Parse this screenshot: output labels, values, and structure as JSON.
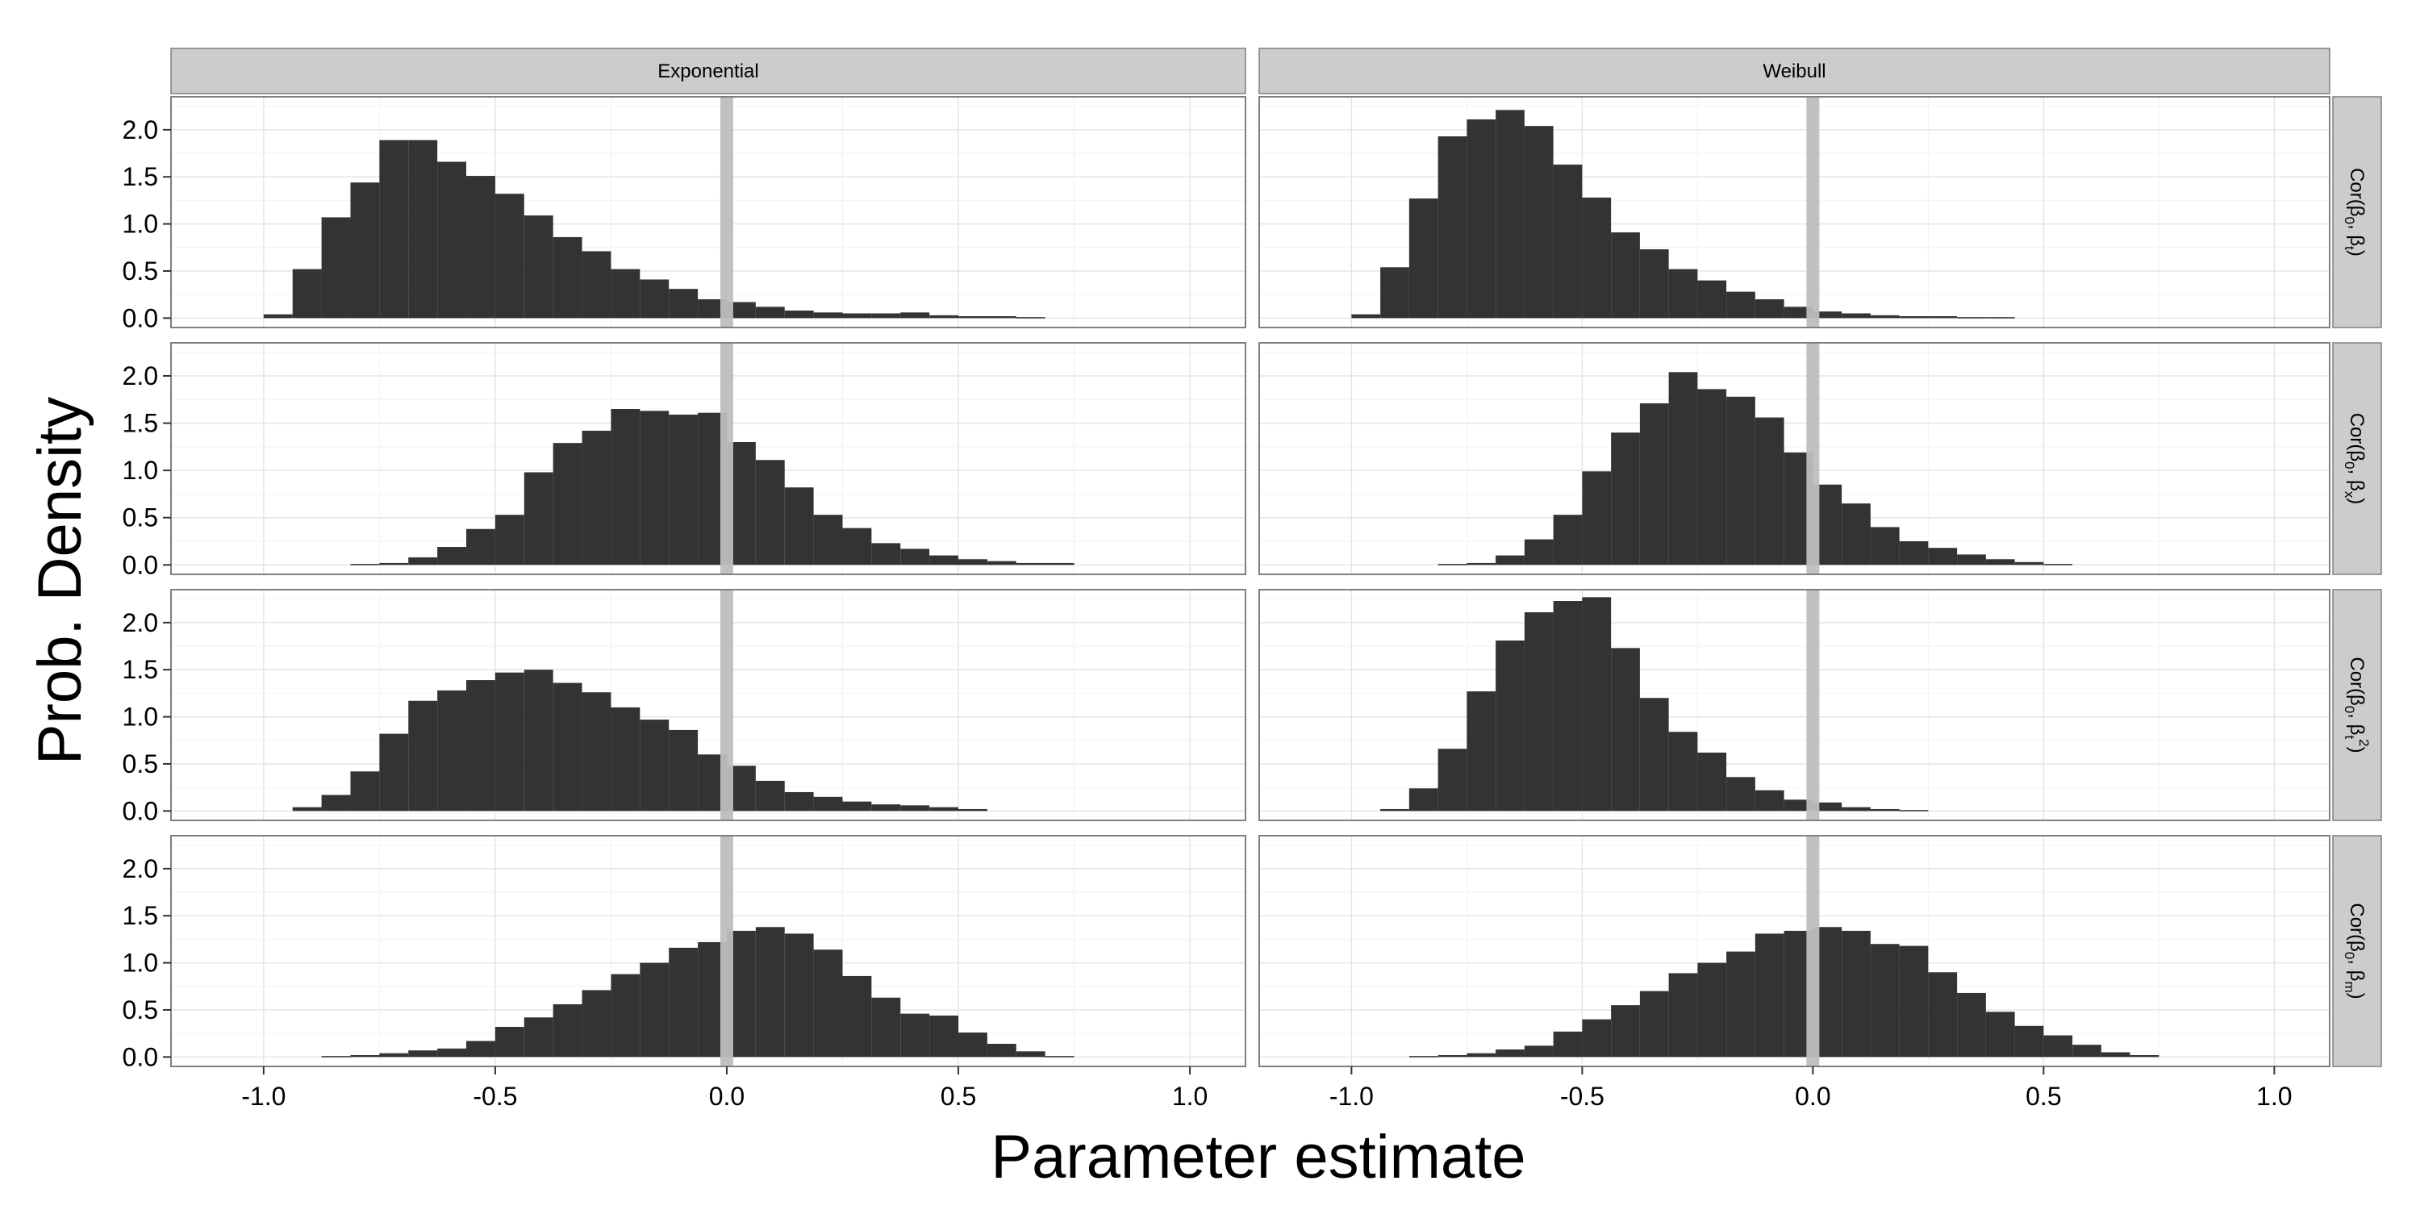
{
  "chart_data": {
    "type": "bar",
    "subtype": "faceted-histogram",
    "xlabel": "Parameter estimate",
    "ylabel": "Prob. Density",
    "xlim": [
      -1.2,
      1.12
    ],
    "ylim": [
      -0.1,
      2.35
    ],
    "x_ticks": [
      "-1.0",
      "-0.5",
      "0.0",
      "0.5",
      "1.0"
    ],
    "x_tick_values": [
      -1.0,
      -0.5,
      0.0,
      0.5,
      1.0
    ],
    "y_ticks": [
      "0.0",
      "0.5",
      "1.0",
      "1.5",
      "2.0"
    ],
    "y_tick_values": [
      0,
      0.5,
      1.0,
      1.5,
      2.0
    ],
    "reference_line": {
      "x": 0,
      "color": "#bebebe"
    },
    "grid": true,
    "bar_color": "#333333",
    "panel_background": "#ffffff",
    "strip_color": "#cccccc",
    "columns": [
      "Exponential",
      "Weibull"
    ],
    "row_labels": [
      {
        "prefix": "Cor(β",
        "sub1": "0",
        "mid": ", β",
        "sub2": "t",
        "sup": "",
        "suffix": ")"
      },
      {
        "prefix": "Cor(β",
        "sub1": "0",
        "mid": ", β",
        "sub2": "x",
        "sup": "",
        "suffix": ")"
      },
      {
        "prefix": "Cor(β",
        "sub1": "0",
        "mid": ", β",
        "sub2": "t",
        "sup": "2",
        "suffix": ")"
      },
      {
        "prefix": "Cor(β",
        "sub1": "0",
        "mid": ", β",
        "sub2": "m",
        "sup": "",
        "suffix": ")"
      }
    ],
    "bin_width": 0.0625,
    "panels": [
      {
        "row": 0,
        "col": 0,
        "start": -1.0,
        "values": [
          0.04,
          0.52,
          1.07,
          1.44,
          1.89,
          1.89,
          1.66,
          1.51,
          1.32,
          1.09,
          0.86,
          0.71,
          0.52,
          0.41,
          0.31,
          0.2,
          0.17,
          0.12,
          0.08,
          0.06,
          0.05,
          0.05,
          0.06,
          0.03,
          0.02,
          0.02,
          0.01
        ]
      },
      {
        "row": 0,
        "col": 1,
        "start": -1.0,
        "values": [
          0.04,
          0.54,
          1.27,
          1.93,
          2.11,
          2.21,
          2.04,
          1.63,
          1.28,
          0.91,
          0.73,
          0.52,
          0.4,
          0.28,
          0.2,
          0.12,
          0.07,
          0.05,
          0.03,
          0.02,
          0.02,
          0.01,
          0.01
        ]
      },
      {
        "row": 1,
        "col": 0,
        "start": -0.8125,
        "values": [
          0.01,
          0.02,
          0.08,
          0.19,
          0.38,
          0.53,
          0.98,
          1.29,
          1.42,
          1.65,
          1.63,
          1.59,
          1.61,
          1.3,
          1.11,
          0.82,
          0.53,
          0.39,
          0.23,
          0.17,
          0.1,
          0.06,
          0.04,
          0.02,
          0.02
        ]
      },
      {
        "row": 1,
        "col": 1,
        "start": -0.8125,
        "values": [
          0.01,
          0.02,
          0.1,
          0.27,
          0.53,
          0.99,
          1.4,
          1.71,
          2.04,
          1.86,
          1.78,
          1.56,
          1.19,
          0.85,
          0.65,
          0.4,
          0.25,
          0.18,
          0.11,
          0.06,
          0.03,
          0.01
        ]
      },
      {
        "row": 2,
        "col": 0,
        "start": -0.9375,
        "values": [
          0.04,
          0.17,
          0.42,
          0.82,
          1.17,
          1.28,
          1.39,
          1.47,
          1.5,
          1.36,
          1.26,
          1.1,
          0.97,
          0.86,
          0.6,
          0.48,
          0.32,
          0.2,
          0.15,
          0.1,
          0.07,
          0.06,
          0.04,
          0.02
        ]
      },
      {
        "row": 2,
        "col": 1,
        "start": -0.9375,
        "values": [
          0.02,
          0.24,
          0.66,
          1.27,
          1.81,
          2.11,
          2.23,
          2.27,
          1.73,
          1.2,
          0.84,
          0.62,
          0.36,
          0.22,
          0.12,
          0.09,
          0.04,
          0.02,
          0.01
        ]
      },
      {
        "row": 3,
        "col": 0,
        "start": -0.875,
        "values": [
          0.01,
          0.02,
          0.04,
          0.07,
          0.09,
          0.17,
          0.32,
          0.42,
          0.56,
          0.71,
          0.88,
          1.0,
          1.16,
          1.22,
          1.34,
          1.38,
          1.31,
          1.14,
          0.86,
          0.63,
          0.46,
          0.44,
          0.26,
          0.14,
          0.06,
          0.01
        ]
      },
      {
        "row": 3,
        "col": 1,
        "start": -0.875,
        "values": [
          0.01,
          0.02,
          0.04,
          0.08,
          0.12,
          0.27,
          0.4,
          0.55,
          0.7,
          0.89,
          1.0,
          1.12,
          1.31,
          1.34,
          1.38,
          1.34,
          1.2,
          1.18,
          0.9,
          0.68,
          0.48,
          0.33,
          0.23,
          0.13,
          0.05,
          0.02
        ]
      }
    ]
  }
}
